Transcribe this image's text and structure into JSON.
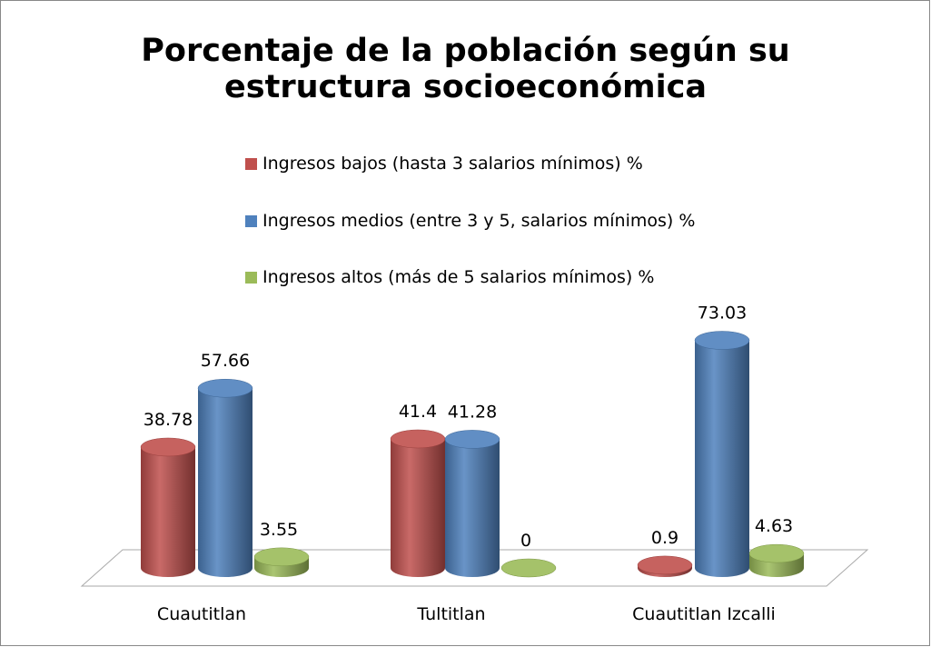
{
  "chart_data": {
    "type": "cylinder-bar",
    "title": "Porcentaje de la población según su estructura socioeconómica",
    "categories": [
      "Cuautitlan",
      "Tultitlan",
      "Cuautitlan Izcalli"
    ],
    "series": [
      {
        "name": "Ingresos bajos (hasta 3 salarios mínimos) %",
        "color": "#c0504d",
        "values": [
          38.78,
          41.4,
          0.9
        ]
      },
      {
        "name": "Ingresos medios (entre 3 y 5, salarios mínimos) %",
        "color": "#4f81bd",
        "values": [
          57.66,
          41.28,
          73.03
        ]
      },
      {
        "name": "Ingresos altos (más de 5 salarios mínimos) %",
        "color": "#9bbb59",
        "values": [
          3.55,
          0,
          4.63
        ]
      }
    ],
    "legend": "top"
  }
}
